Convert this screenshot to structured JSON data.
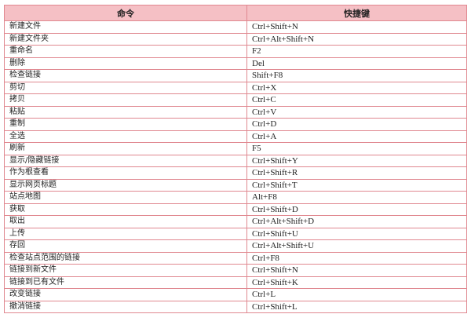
{
  "headers": {
    "command": "命令",
    "shortcut": "快捷键"
  },
  "rows": [
    {
      "command": "新建文件",
      "shortcut": "Ctrl+Shift+N"
    },
    {
      "command": "新建文件夹",
      "shortcut": "Ctrl+Alt+Shift+N"
    },
    {
      "command": "重命名",
      "shortcut": "F2"
    },
    {
      "command": "删除",
      "shortcut": "Del"
    },
    {
      "command": "检查链接",
      "shortcut": "Shift+F8"
    },
    {
      "command": "剪切",
      "shortcut": "Ctrl+X"
    },
    {
      "command": "拷贝",
      "shortcut": "Ctrl+C"
    },
    {
      "command": "粘贴",
      "shortcut": "Ctrl+V"
    },
    {
      "command": "重制",
      "shortcut": "Ctrl+D"
    },
    {
      "command": "全选",
      "shortcut": "Ctrl+A"
    },
    {
      "command": "刷新",
      "shortcut": "F5"
    },
    {
      "command": "显示/隐藏链接",
      "shortcut": "Ctrl+Shift+Y"
    },
    {
      "command": "作为根查看",
      "shortcut": "Ctrl+Shift+R"
    },
    {
      "command": "显示网页标题",
      "shortcut": "Ctrl+Shift+T"
    },
    {
      "command": "站点地图",
      "shortcut": "Alt+F8"
    },
    {
      "command": "获取",
      "shortcut": "Ctrl+Shift+D"
    },
    {
      "command": "取出",
      "shortcut": "Ctrl+Alt+Shift+D"
    },
    {
      "command": "上传",
      "shortcut": "Ctrl+Shift+U"
    },
    {
      "command": "存回",
      "shortcut": "Ctrl+Alt+Shift+U"
    },
    {
      "command": "检查站点范围的链接",
      "shortcut": "Ctrl+F8"
    },
    {
      "command": "链接到新文件",
      "shortcut": "Ctrl+Shift+N"
    },
    {
      "command": "链接到已有文件",
      "shortcut": "Ctrl+Shift+K"
    },
    {
      "command": "改变链接",
      "shortcut": "Ctrl+L"
    },
    {
      "command": "撤消链接",
      "shortcut": "Ctrl+Shift+L"
    }
  ]
}
